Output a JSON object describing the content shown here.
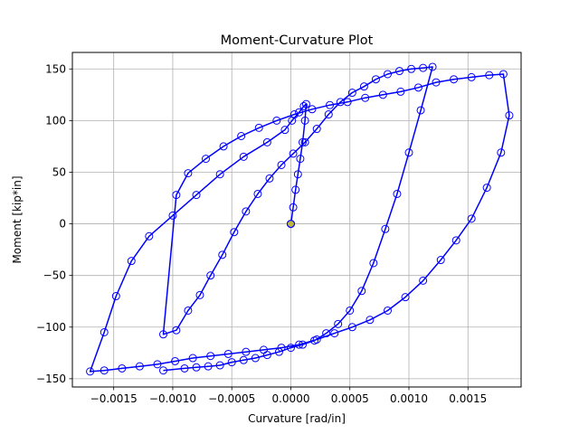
{
  "chart_data": {
    "type": "line",
    "title": "Moment-Curvature Plot",
    "xlabel": "Curvature [rad/in]",
    "ylabel": "Moment [kip*in]",
    "xlim": [
      -0.00185,
      0.00195
    ],
    "ylim": [
      -158,
      166
    ],
    "xticks": [
      -0.0015,
      -0.001,
      -0.0005,
      0.0,
      0.0005,
      0.001,
      0.0015
    ],
    "xtick_labels": [
      "−0.0015",
      "−0.0010",
      "−0.0005",
      "0.0000",
      "0.0005",
      "0.0010",
      "0.0015"
    ],
    "yticks": [
      -150,
      -100,
      -50,
      0,
      50,
      100,
      150
    ],
    "ytick_labels": [
      "−150",
      "−100",
      "−50",
      "0",
      "50",
      "100",
      "150"
    ],
    "grid": true,
    "series": [
      {
        "color": "#0000ff",
        "marker": "circle-open",
        "highlight_point_color": "#bdb83c",
        "points": [
          [
            0.0,
            0.0
          ],
          [
            0.0,
            0.0
          ],
          [
            2e-05,
            16
          ],
          [
            4e-05,
            33
          ],
          [
            6e-05,
            48
          ],
          [
            8e-05,
            63
          ],
          [
            0.0001,
            79
          ],
          [
            0.00012,
            100
          ],
          [
            0.00013,
            116
          ],
          [
            0.00011,
            114
          ],
          [
            7e-05,
            108
          ],
          [
            1e-05,
            100
          ],
          [
            -5e-05,
            91
          ],
          [
            -0.0002,
            79
          ],
          [
            -0.0004,
            65
          ],
          [
            -0.0006,
            48
          ],
          [
            -0.0008,
            28
          ],
          [
            -0.001,
            8
          ],
          [
            -0.0012,
            -12
          ],
          [
            -0.00135,
            -36
          ],
          [
            -0.00148,
            -70
          ],
          [
            -0.00158,
            -105
          ],
          [
            -0.0017,
            -143
          ],
          [
            -0.00158,
            -142
          ],
          [
            -0.00143,
            -140
          ],
          [
            -0.00128,
            -138
          ],
          [
            -0.00113,
            -136
          ],
          [
            -0.00098,
            -133
          ],
          [
            -0.00083,
            -130
          ],
          [
            -0.00068,
            -128
          ],
          [
            -0.00053,
            -126
          ],
          [
            -0.00038,
            -124
          ],
          [
            -0.00023,
            -122
          ],
          [
            -8e-05,
            -120
          ],
          [
            7e-05,
            -117
          ],
          [
            0.00022,
            -112
          ],
          [
            0.00037,
            -106
          ],
          [
            0.00052,
            -100
          ],
          [
            0.00067,
            -93
          ],
          [
            0.00082,
            -84
          ],
          [
            0.00097,
            -71
          ],
          [
            0.00112,
            -55
          ],
          [
            0.00127,
            -35
          ],
          [
            0.0014,
            -16
          ],
          [
            0.00153,
            5
          ],
          [
            0.00166,
            35
          ],
          [
            0.00178,
            69
          ],
          [
            0.00185,
            105
          ],
          [
            0.0018,
            145
          ],
          [
            0.00168,
            144
          ],
          [
            0.00153,
            142
          ],
          [
            0.00138,
            140
          ],
          [
            0.00123,
            137
          ],
          [
            0.00108,
            132
          ],
          [
            0.00093,
            128
          ],
          [
            0.00078,
            125
          ],
          [
            0.00063,
            122
          ],
          [
            0.00048,
            118
          ],
          [
            0.00033,
            115
          ],
          [
            0.00018,
            111
          ],
          [
            3e-05,
            106
          ],
          [
            -0.00012,
            100
          ],
          [
            -0.00027,
            93
          ],
          [
            -0.00042,
            85
          ],
          [
            -0.00057,
            75
          ],
          [
            -0.00072,
            63
          ],
          [
            -0.00087,
            49
          ],
          [
            -0.00097,
            28
          ],
          [
            -0.00108,
            -107
          ],
          [
            -0.00097,
            -103
          ],
          [
            -0.00087,
            -84
          ],
          [
            -0.00077,
            -69
          ],
          [
            -0.00068,
            -50
          ],
          [
            -0.00058,
            -30
          ],
          [
            -0.00048,
            -8
          ],
          [
            -0.00038,
            12
          ],
          [
            -0.00028,
            29
          ],
          [
            -0.00018,
            44
          ],
          [
            -8e-05,
            57
          ],
          [
            2e-05,
            68
          ],
          [
            0.00012,
            79
          ],
          [
            0.00022,
            92
          ],
          [
            0.00032,
            106
          ],
          [
            0.00042,
            118
          ],
          [
            0.00052,
            127
          ],
          [
            0.00062,
            133
          ],
          [
            0.00072,
            140
          ],
          [
            0.00082,
            145
          ],
          [
            0.00092,
            148
          ],
          [
            0.00102,
            150
          ],
          [
            0.00112,
            151
          ],
          [
            0.0012,
            152
          ],
          [
            0.0011,
            110
          ],
          [
            0.001,
            69
          ],
          [
            0.0009,
            29
          ],
          [
            0.0008,
            -5
          ],
          [
            0.0007,
            -38
          ],
          [
            0.0006,
            -65
          ],
          [
            0.0005,
            -84
          ],
          [
            0.0004,
            -97
          ],
          [
            0.0003,
            -106
          ],
          [
            0.0002,
            -113
          ],
          [
            0.0001,
            -117
          ],
          [
            0.0,
            -120
          ],
          [
            -0.0001,
            -124
          ],
          [
            -0.0002,
            -127
          ],
          [
            -0.0003,
            -130
          ],
          [
            -0.0004,
            -132
          ],
          [
            -0.0005,
            -134
          ],
          [
            -0.0006,
            -137
          ],
          [
            -0.0007,
            -138
          ],
          [
            -0.0008,
            -139
          ],
          [
            -0.0009,
            -140
          ],
          [
            -0.00108,
            -142
          ]
        ]
      }
    ]
  }
}
